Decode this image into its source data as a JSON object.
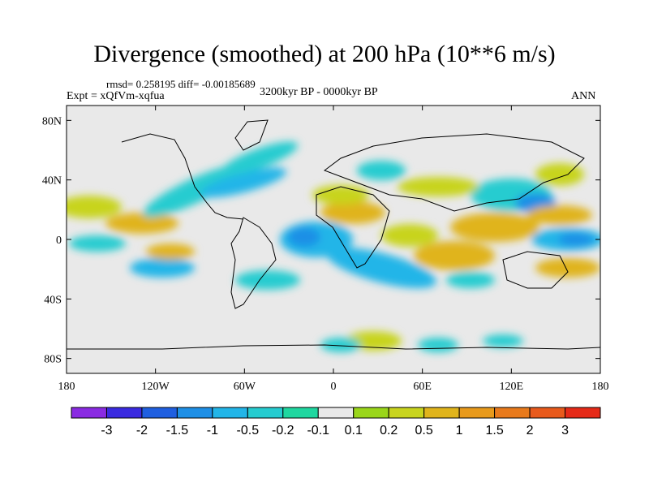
{
  "title": "Divergence (smoothed) at 200 hPa (10**6 m/s)",
  "stats": "rmsd= 0.258195 diff= -0.00185689",
  "period": "3200kyr BP - 0000kyr BP",
  "experiment": "Expt = xQfVm-xqfua",
  "season": "ANN",
  "y_ticks": [
    "80N",
    "40N",
    "0",
    "40S",
    "80S"
  ],
  "y_tick_lat": [
    80,
    40,
    0,
    -40,
    -80
  ],
  "x_ticks": [
    "180",
    "120W",
    "60W",
    "0",
    "60E",
    "120E",
    "180"
  ],
  "x_tick_lon": [
    -180,
    -120,
    -60,
    0,
    60,
    120,
    180
  ],
  "colorbar": {
    "colors": [
      "#8a2be2",
      "#3a2ae0",
      "#1f5fe0",
      "#1e8fe6",
      "#22b5e8",
      "#26ccd0",
      "#1fd7a0",
      "#e9e9e9",
      "#9ad61a",
      "#c8d41e",
      "#e0b41c",
      "#e89a1c",
      "#e87a1c",
      "#e85a1c",
      "#e52a18"
    ],
    "labels": [
      "-3",
      "-2",
      "-1.5",
      "-1",
      "-0.5",
      "-0.2",
      "-0.1",
      "0.1",
      "0.2",
      "0.5",
      "1",
      "1.5",
      "2",
      "3"
    ]
  },
  "colors": {
    "background": "#e9e9e9",
    "coast": "#000000"
  }
}
